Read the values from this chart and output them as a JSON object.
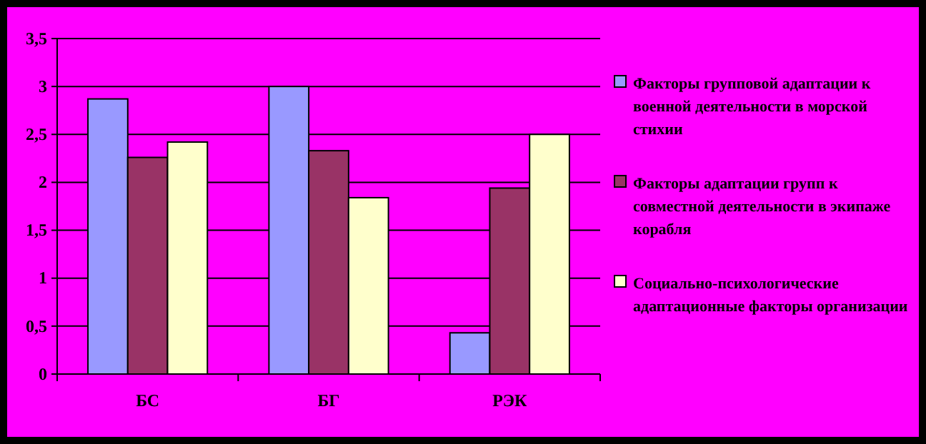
{
  "chart_data": {
    "type": "bar",
    "categories": [
      "БС",
      "БГ",
      "РЭК"
    ],
    "series": [
      {
        "name": "Факторы  групповой адаптации к военной деятельности в морской стихии",
        "color": "#9999ff",
        "values": [
          2.87,
          3.0,
          0.43
        ]
      },
      {
        "name": "Факторы адаптации групп к совместной деятельности в экипаже корабля",
        "color": "#993366",
        "values": [
          2.26,
          2.33,
          1.94
        ]
      },
      {
        "name": "Социально-психологические адаптационные факторы организации",
        "color": "#ffffcc",
        "values": [
          2.42,
          1.84,
          2.5
        ]
      }
    ],
    "ylim": [
      0,
      3.5
    ],
    "yticks": [
      0,
      {
        "value": 0.5,
        "label": "0,5"
      },
      1,
      {
        "value": 1.5,
        "label": "1,5"
      },
      2,
      {
        "value": 2.5,
        "label": "2,5"
      },
      3,
      {
        "value": 3.5,
        "label": "3,5"
      }
    ],
    "grid": "y",
    "legend": "right"
  }
}
